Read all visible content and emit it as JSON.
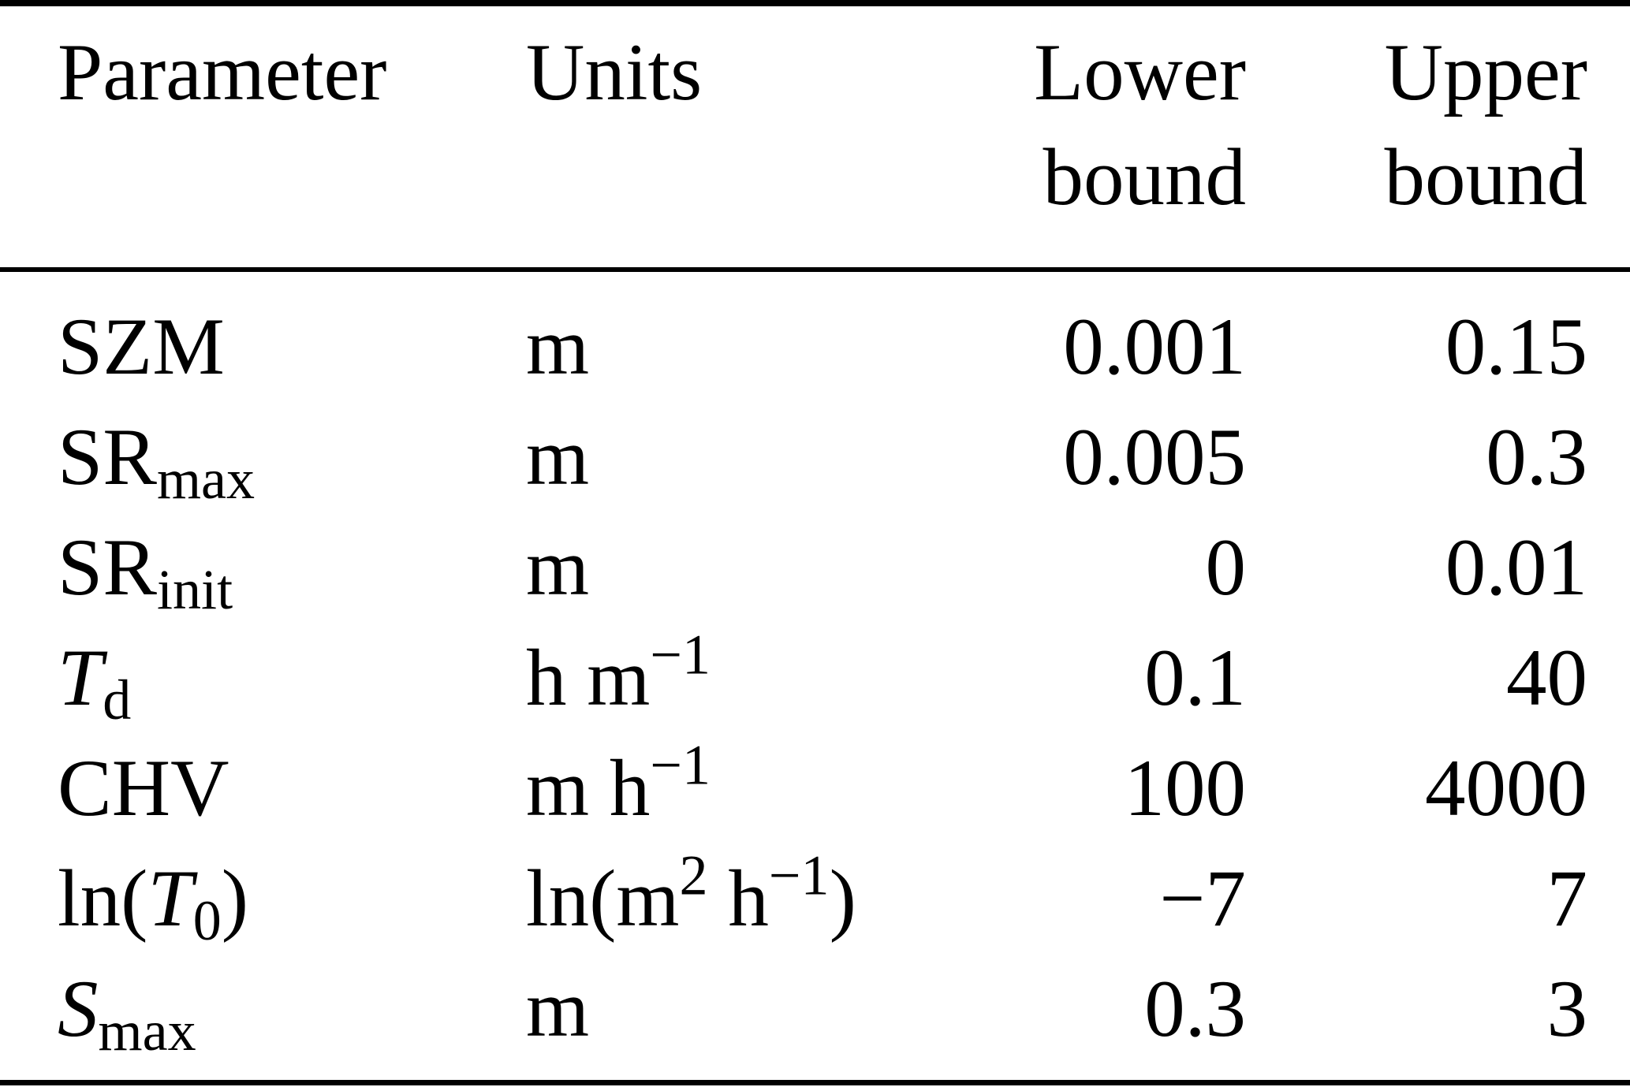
{
  "colors": {
    "background": "#ffffff",
    "text": "#000000",
    "rule": "#000000"
  },
  "table": {
    "columns": [
      {
        "id": "parameter",
        "line1": "Parameter",
        "line2": ""
      },
      {
        "id": "units",
        "line1": "Units",
        "line2": ""
      },
      {
        "id": "lower_bound",
        "line1": "Lower",
        "line2": "bound"
      },
      {
        "id": "upper_bound",
        "line1": "Upper",
        "line2": "bound"
      }
    ],
    "rows": [
      {
        "parameter": [
          {
            "t": "SZM"
          }
        ],
        "units": [
          {
            "t": "m"
          }
        ],
        "lower": "0.001",
        "upper": "0.15"
      },
      {
        "parameter": [
          {
            "t": "SR"
          },
          {
            "t": "max",
            "pos": "sub"
          }
        ],
        "units": [
          {
            "t": "m"
          }
        ],
        "lower": "0.005",
        "upper": "0.3"
      },
      {
        "parameter": [
          {
            "t": "SR"
          },
          {
            "t": "init",
            "pos": "sub"
          }
        ],
        "units": [
          {
            "t": "m"
          }
        ],
        "lower": "0",
        "upper": "0.01"
      },
      {
        "parameter": [
          {
            "t": "T",
            "italic": true
          },
          {
            "t": "d",
            "pos": "sub"
          }
        ],
        "units": [
          {
            "t": "h m"
          },
          {
            "t": "−1",
            "pos": "sup"
          }
        ],
        "lower": "0.1",
        "upper": "40"
      },
      {
        "parameter": [
          {
            "t": "CHV"
          }
        ],
        "units": [
          {
            "t": "m h"
          },
          {
            "t": "−1",
            "pos": "sup"
          }
        ],
        "lower": "100",
        "upper": "4000"
      },
      {
        "parameter": [
          {
            "t": "ln("
          },
          {
            "t": "T",
            "italic": true
          },
          {
            "t": "0",
            "pos": "sub"
          },
          {
            "t": ")"
          }
        ],
        "units": [
          {
            "t": "ln(m"
          },
          {
            "t": "2",
            "pos": "sup"
          },
          {
            "t": " h"
          },
          {
            "t": "−1",
            "pos": "sup"
          },
          {
            "t": ")"
          }
        ],
        "lower": "−7",
        "upper": "7"
      },
      {
        "parameter": [
          {
            "t": "S",
            "italic": true
          },
          {
            "t": "max",
            "pos": "sub"
          }
        ],
        "units": [
          {
            "t": "m"
          }
        ],
        "lower": "0.3",
        "upper": "3"
      }
    ]
  }
}
